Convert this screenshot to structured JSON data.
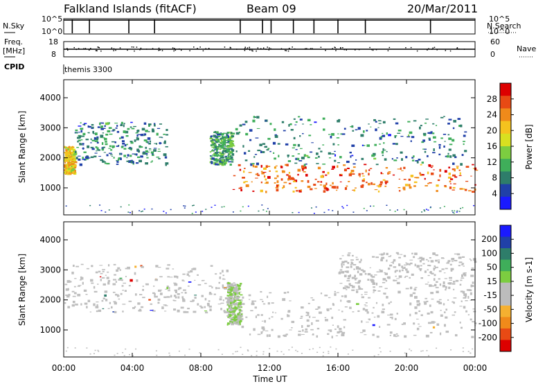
{
  "header": {
    "station": "Falkland Islands (fitACF)",
    "beam": "Beam 09",
    "date": "20/Mar/2011"
  },
  "status_panel": {
    "nsky_label": "N.Sky",
    "nsky_ticks": [
      "10^5",
      "10^0"
    ],
    "nsearch_label": "N.Search",
    "nsearch_ticks": [
      "10^5",
      "10^0"
    ],
    "freq_label_line1": "Freq.",
    "freq_label_line2": "[MHz]",
    "freq_ticks": [
      "18",
      "8"
    ],
    "nave_label": "Nave",
    "nave_ticks": [
      "60",
      "0"
    ],
    "cpid_label": "CPID",
    "cpid_value": "themis 3300"
  },
  "colors": {
    "power_scale": [
      "#1a1aff",
      "#2040a8",
      "#2e7d6a",
      "#3fae5a",
      "#7ccd40",
      "#d8e020",
      "#f5c21e",
      "#f08a1a",
      "#e84a14",
      "#dd0000"
    ],
    "velocity_scale": [
      "#dd0000",
      "#e84a14",
      "#f08a1a",
      "#f5b030",
      "#bcbcbc",
      "#bcbcbc",
      "#7ccd40",
      "#3fae5a",
      "#2e7d6a",
      "#2040a8",
      "#1a1aff"
    ],
    "ground_scatter": "#bebebe"
  },
  "chart_data": [
    {
      "type": "heatmap",
      "name": "power",
      "x_range_hours": [
        0,
        24
      ],
      "xtick_labels": [
        "00:00",
        "04:00",
        "08:00",
        "12:00",
        "16:00",
        "20:00",
        "00:00"
      ],
      "y_range_km": [
        100,
        4600
      ],
      "ytick_values": [
        1000,
        2000,
        3000,
        4000
      ],
      "ylabel": "Slant Range [km]",
      "colorbar": {
        "label": "Power [dB]",
        "range": [
          0,
          32
        ],
        "ticks": [
          "4",
          "8",
          "12",
          "16",
          "20",
          "24",
          "28"
        ]
      },
      "features": [
        {
          "t0": 0.0,
          "t1": 0.6,
          "r0": 1500,
          "r1": 2400,
          "level_db": 20
        },
        {
          "t0": 0.6,
          "t1": 6.0,
          "r0": 1800,
          "r1": 3200,
          "level_db": 8
        },
        {
          "t0": 8.5,
          "t1": 9.8,
          "r0": 1800,
          "r1": 2900,
          "level_db": 10
        },
        {
          "t0": 9.8,
          "t1": 24.0,
          "r0": 900,
          "r1": 1800,
          "level_db": 26
        },
        {
          "t0": 10.0,
          "t1": 23.5,
          "r0": 1800,
          "r1": 3400,
          "level_db": 8
        }
      ]
    },
    {
      "type": "heatmap",
      "name": "velocity",
      "x_range_hours": [
        0,
        24
      ],
      "xtick_labels": [
        "00:00",
        "04:00",
        "08:00",
        "12:00",
        "16:00",
        "20:00",
        "00:00"
      ],
      "xlabel": "Time UT",
      "y_range_km": [
        100,
        4600
      ],
      "ytick_values": [
        1000,
        2000,
        3000,
        4000
      ],
      "ylabel": "Slant Range [km]",
      "colorbar": {
        "label": "Velocity [m s-1]",
        "range": [
          -250,
          250
        ],
        "ticks": [
          "200",
          "100",
          "50",
          "15",
          "-15",
          "-50",
          "-100",
          "-200"
        ]
      },
      "features": [
        {
          "t0": 0.0,
          "t1": 9.5,
          "r0": 1600,
          "r1": 3200,
          "kind": "ground_scatter"
        },
        {
          "t0": 9.5,
          "t1": 10.3,
          "r0": 1200,
          "r1": 2600,
          "velocity": 25
        },
        {
          "t0": 10.3,
          "t1": 24.0,
          "r0": 800,
          "r1": 2300,
          "kind": "ground_scatter"
        },
        {
          "t0": 16.0,
          "t1": 24.0,
          "r0": 2300,
          "r1": 3600,
          "velocity": -40
        }
      ]
    }
  ]
}
